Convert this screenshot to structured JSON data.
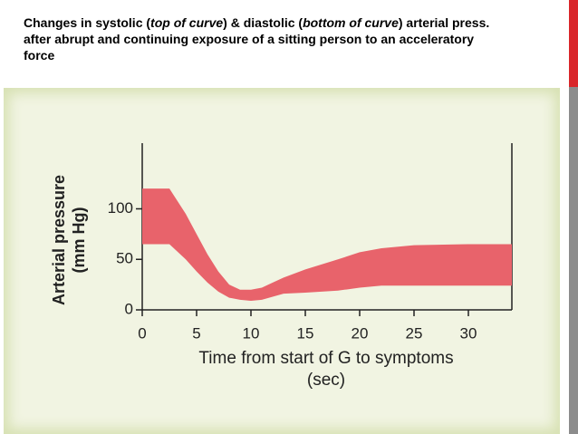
{
  "chart_data": {
    "type": "band",
    "title": [
      "Changes in systolic (",
      "top of curve",
      ") & diastolic (",
      "bottom of curve",
      ") arterial press.",
      "after abrupt and continuing exposure of a sitting person to an acceleratory",
      "force"
    ],
    "x_label": [
      "Time from start of G to symptoms",
      "(sec)"
    ],
    "y_label": [
      "Arterial pressure",
      "(mm Hg)"
    ],
    "x": [
      0,
      2.5,
      4,
      5,
      6,
      7,
      8,
      9,
      10,
      11,
      12,
      13,
      15,
      18,
      20,
      22,
      25,
      30,
      34
    ],
    "series": [
      {
        "values": [
          120,
          120,
          95,
          75,
          55,
          38,
          25,
          20,
          20,
          22,
          27,
          32,
          40,
          50,
          57,
          61,
          64,
          65,
          65
        ]
      },
      {
        "values": [
          65,
          65,
          50,
          38,
          27,
          18,
          12,
          10,
          9,
          10,
          13,
          16,
          17,
          19,
          22,
          24,
          24,
          24,
          24
        ]
      }
    ],
    "color": "#e8636b",
    "xlim": [
      0,
      34
    ],
    "xticks": [
      0,
      5,
      10,
      15,
      20,
      25,
      30
    ],
    "ylim": [
      0,
      165
    ],
    "yticks": [
      0,
      50,
      100
    ]
  }
}
